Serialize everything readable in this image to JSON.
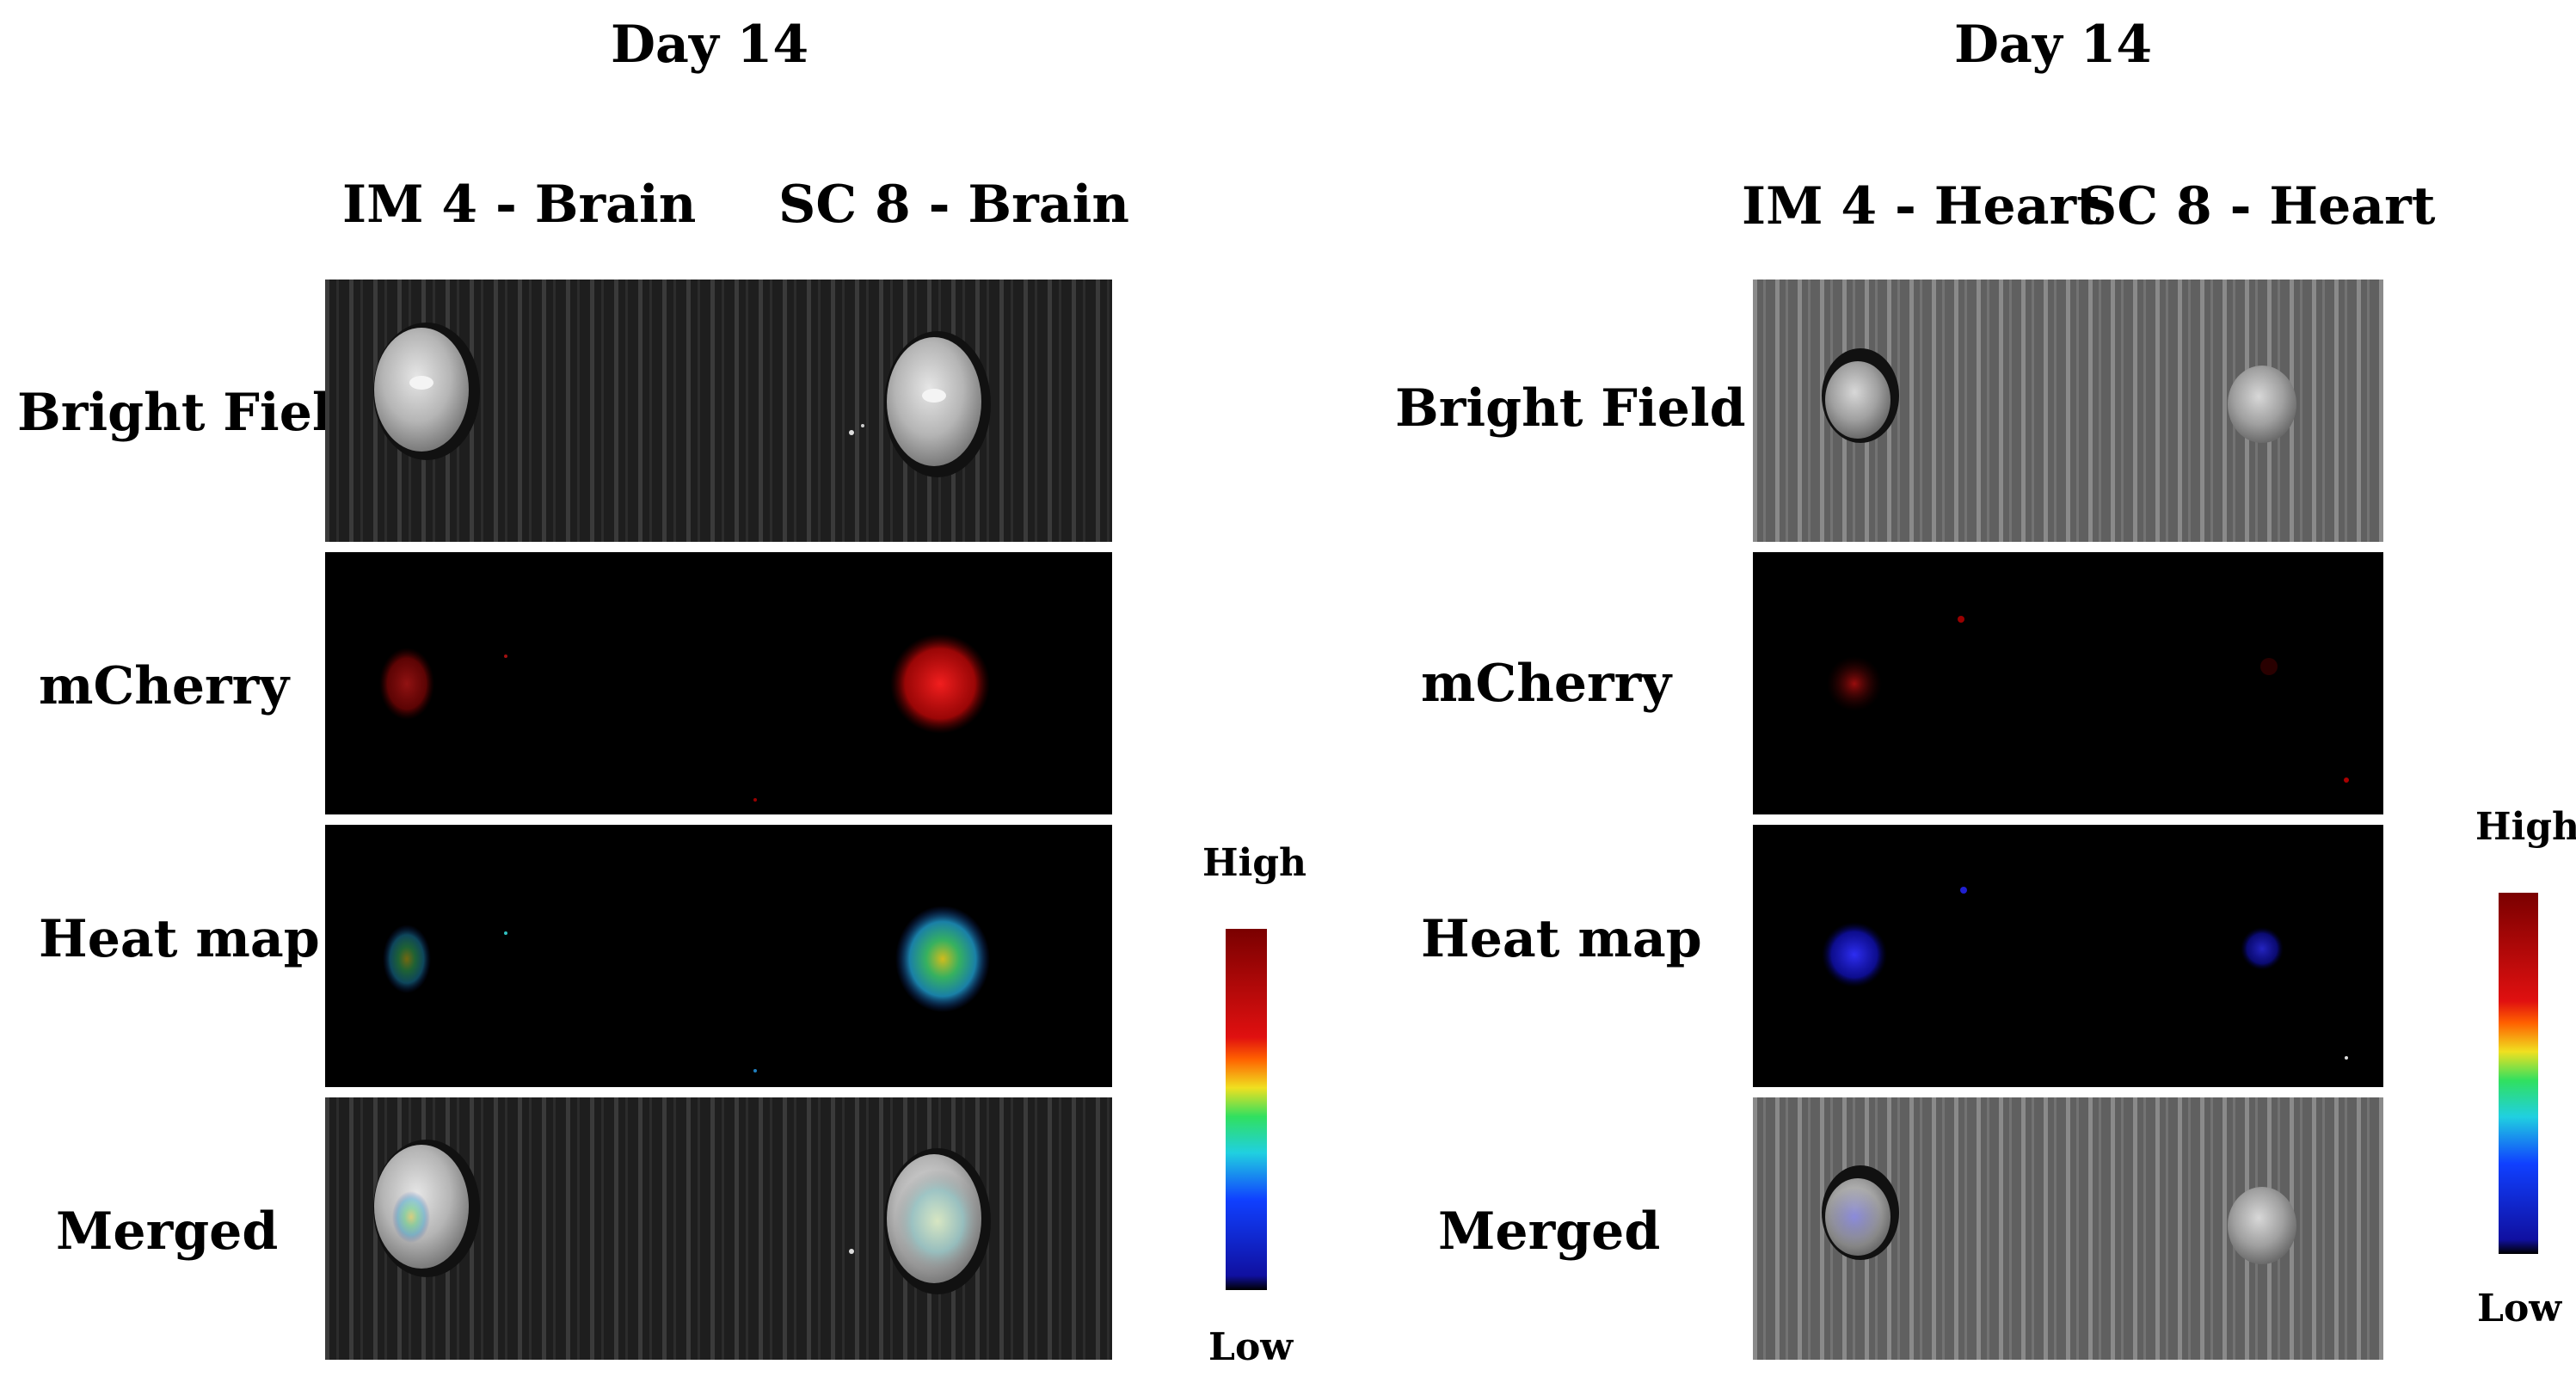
{
  "figure": {
    "left": {
      "title": "Day 14",
      "columns": [
        "IM 4 - Brain",
        "SC 8 - Brain"
      ],
      "rows": [
        "Bright Field",
        "mCherry",
        "Heat map",
        "Merged"
      ],
      "scale": {
        "high": "High",
        "low": "Low"
      }
    },
    "right": {
      "title": "Day 14",
      "columns": [
        "IM 4 - Heart",
        "SC 8 - Heart"
      ],
      "rows": [
        "Bright Field",
        "mCherry",
        "Heat map",
        "Merged"
      ],
      "scale": {
        "high": "High",
        "low": "Low"
      }
    }
  },
  "colors": {
    "mcherry": "#d01010",
    "heat_low": "#000000",
    "heat_blue": "#1010c0",
    "heat_cyan": "#20d0d0",
    "heat_green": "#30e030",
    "heat_yellow": "#f0e020",
    "heat_red": "#e01010",
    "heat_high": "#7a0000"
  }
}
